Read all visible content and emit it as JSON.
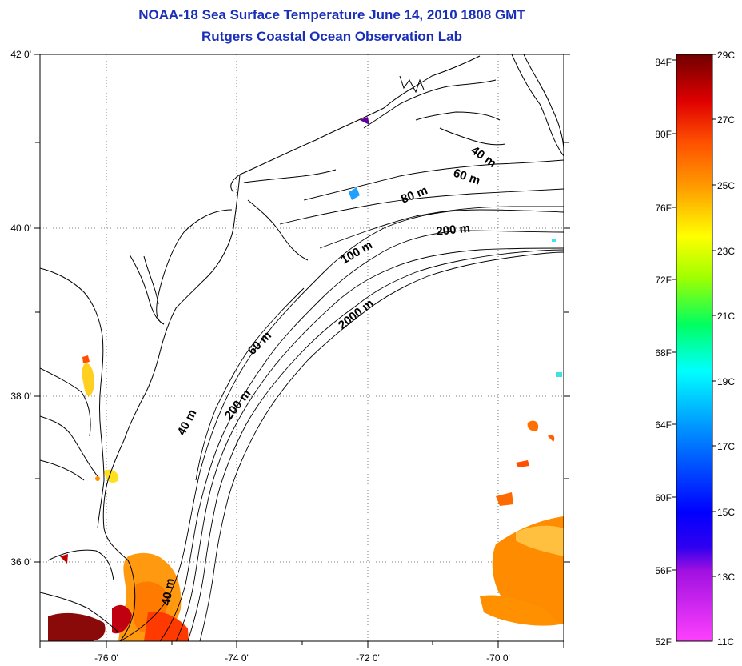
{
  "title": "NOAA-18 Sea Surface Temperature June 14, 2010 1808 GMT",
  "subtitle": "Rutgers Coastal Ocean Observation Lab",
  "map": {
    "lat_ticks": [
      "42 0'",
      "40 0'",
      "38 0'",
      "36 0'"
    ],
    "lon_ticks": [
      "-76 0'",
      "-74 0'",
      "-72 0'",
      "-70 0'"
    ],
    "grid": "dotted",
    "isobath_labels": [
      "40 m",
      "60 m",
      "80 m",
      "200 m",
      "100 m",
      "2000 m",
      "60 m",
      "40 m",
      "200 m",
      "40 m"
    ]
  },
  "colorbar": {
    "f_labels": [
      "84F",
      "80F",
      "76F",
      "72F",
      "68F",
      "64F",
      "60F",
      "56F",
      "52F"
    ],
    "c_labels": [
      "29C",
      "27C",
      "25C",
      "23C",
      "21C",
      "19C",
      "17C",
      "15C",
      "13C",
      "11C"
    ],
    "colors": {
      "max": "#7a0000",
      "red": "#e60000",
      "orange": "#ff8c00",
      "yellow": "#ffff00",
      "green": "#00ff40",
      "cyan": "#00ffff",
      "blue": "#0000ff",
      "purple": "#7a00c8",
      "min": "#ff40ff"
    }
  }
}
